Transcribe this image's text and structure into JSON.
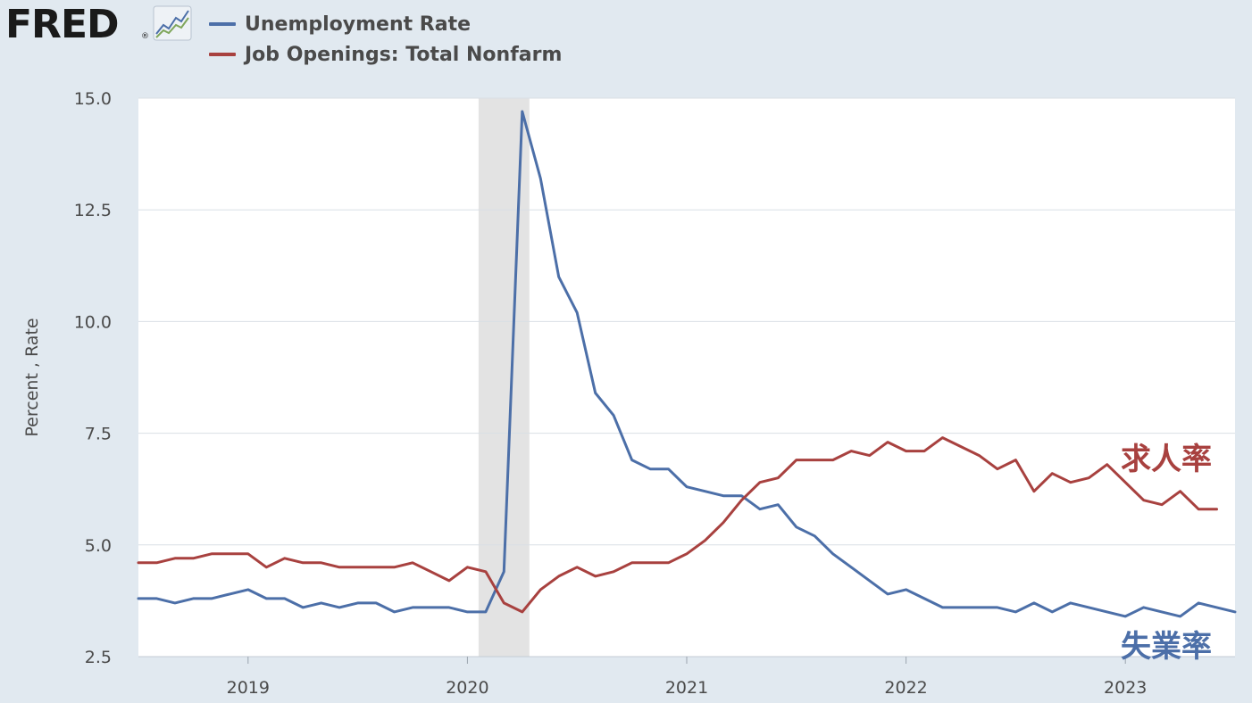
{
  "header": {
    "logo_text": "FRED",
    "logo_reg": "®",
    "logo_icon": "line-chart-icon"
  },
  "legend": [
    {
      "label": "Unemployment Rate",
      "color": "#4c6fa8"
    },
    {
      "label": "Job Openings: Total Nonfarm",
      "color": "#a8413f"
    }
  ],
  "chart_data": {
    "type": "line",
    "title": "",
    "xlabel": "",
    "ylabel": "Percent , Rate",
    "ylim": [
      2.5,
      15.0
    ],
    "yticks": [
      "15.0",
      "12.5",
      "10.0",
      "7.5",
      "5.0",
      "2.5"
    ],
    "xticks": [
      "2019",
      "2020",
      "2021",
      "2022",
      "2023"
    ],
    "x_start": "2018-07",
    "x_end": "2023-07",
    "grid": true,
    "recession": {
      "start": "2020-02",
      "end": "2020-04"
    },
    "annotations": [
      {
        "text": "求人率",
        "color": "#a8413f"
      },
      {
        "text": "失業率",
        "color": "#4c6fa8"
      }
    ],
    "series": [
      {
        "name": "Unemployment Rate",
        "color": "#4c6fa8",
        "x": [
          "2018-07",
          "2018-08",
          "2018-09",
          "2018-10",
          "2018-11",
          "2018-12",
          "2019-01",
          "2019-02",
          "2019-03",
          "2019-04",
          "2019-05",
          "2019-06",
          "2019-07",
          "2019-08",
          "2019-09",
          "2019-10",
          "2019-11",
          "2019-12",
          "2020-01",
          "2020-02",
          "2020-03",
          "2020-04",
          "2020-05",
          "2020-06",
          "2020-07",
          "2020-08",
          "2020-09",
          "2020-10",
          "2020-11",
          "2020-12",
          "2021-01",
          "2021-02",
          "2021-03",
          "2021-04",
          "2021-05",
          "2021-06",
          "2021-07",
          "2021-08",
          "2021-09",
          "2021-10",
          "2021-11",
          "2021-12",
          "2022-01",
          "2022-02",
          "2022-03",
          "2022-04",
          "2022-05",
          "2022-06",
          "2022-07",
          "2022-08",
          "2022-09",
          "2022-10",
          "2022-11",
          "2022-12",
          "2023-01",
          "2023-02",
          "2023-03",
          "2023-04",
          "2023-05",
          "2023-06",
          "2023-07"
        ],
        "values": [
          3.8,
          3.8,
          3.7,
          3.8,
          3.8,
          3.9,
          4.0,
          3.8,
          3.8,
          3.6,
          3.7,
          3.6,
          3.7,
          3.7,
          3.5,
          3.6,
          3.6,
          3.6,
          3.5,
          3.5,
          4.4,
          14.7,
          13.2,
          11.0,
          10.2,
          8.4,
          7.9,
          6.9,
          6.7,
          6.7,
          6.3,
          6.2,
          6.1,
          6.1,
          5.8,
          5.9,
          5.4,
          5.2,
          4.8,
          4.5,
          4.2,
          3.9,
          4.0,
          3.8,
          3.6,
          3.6,
          3.6,
          3.6,
          3.5,
          3.7,
          3.5,
          3.7,
          3.6,
          3.5,
          3.4,
          3.6,
          3.5,
          3.4,
          3.7,
          3.6,
          3.5
        ]
      },
      {
        "name": "Job Openings: Total Nonfarm",
        "color": "#a8413f",
        "x": [
          "2018-07",
          "2018-08",
          "2018-09",
          "2018-10",
          "2018-11",
          "2018-12",
          "2019-01",
          "2019-02",
          "2019-03",
          "2019-04",
          "2019-05",
          "2019-06",
          "2019-07",
          "2019-08",
          "2019-09",
          "2019-10",
          "2019-11",
          "2019-12",
          "2020-01",
          "2020-02",
          "2020-03",
          "2020-04",
          "2020-05",
          "2020-06",
          "2020-07",
          "2020-08",
          "2020-09",
          "2020-10",
          "2020-11",
          "2020-12",
          "2021-01",
          "2021-02",
          "2021-03",
          "2021-04",
          "2021-05",
          "2021-06",
          "2021-07",
          "2021-08",
          "2021-09",
          "2021-10",
          "2021-11",
          "2021-12",
          "2022-01",
          "2022-02",
          "2022-03",
          "2022-04",
          "2022-05",
          "2022-06",
          "2022-07",
          "2022-08",
          "2022-09",
          "2022-10",
          "2022-11",
          "2022-12",
          "2023-01",
          "2023-02",
          "2023-03",
          "2023-04",
          "2023-05",
          "2023-06"
        ],
        "values": [
          4.6,
          4.6,
          4.7,
          4.7,
          4.8,
          4.8,
          4.8,
          4.5,
          4.7,
          4.6,
          4.6,
          4.5,
          4.5,
          4.5,
          4.5,
          4.6,
          4.4,
          4.2,
          4.5,
          4.4,
          3.7,
          3.5,
          4.0,
          4.3,
          4.5,
          4.3,
          4.4,
          4.6,
          4.6,
          4.6,
          4.8,
          5.1,
          5.5,
          6.0,
          6.4,
          6.5,
          6.9,
          6.9,
          6.9,
          7.1,
          7.0,
          7.3,
          7.1,
          7.1,
          7.4,
          7.2,
          7.0,
          6.7,
          6.9,
          6.2,
          6.6,
          6.4,
          6.5,
          6.8,
          6.4,
          6.0,
          5.9,
          6.2,
          5.8,
          5.8
        ]
      }
    ]
  }
}
